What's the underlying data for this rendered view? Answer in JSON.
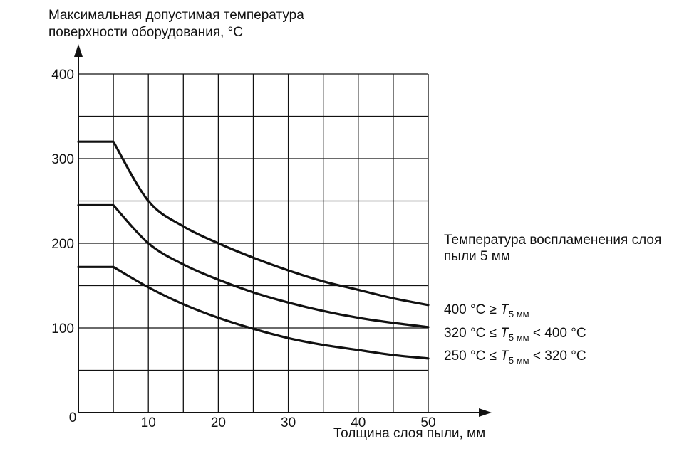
{
  "chart_data": {
    "type": "line",
    "ylabel_line1": "Максимальная допустимая температура",
    "ylabel_line2": "поверхности оборудования, °С",
    "xlabel": "Толщина слоя пыли, мм",
    "legend_title_line1": "Температура воспламенения слоя",
    "legend_title_line2": "пыли 5 мм",
    "xlim": [
      0,
      50
    ],
    "ylim": [
      0,
      400
    ],
    "grid": true,
    "x_ticks": [
      "10",
      "20",
      "30",
      "40",
      "50"
    ],
    "y_ticks": [
      "400",
      "300",
      "200",
      "100"
    ],
    "origin_label": "0",
    "series": [
      {
        "label_prefix": "400 °С ≥ ",
        "label_var": "T",
        "label_sub": "5 мм",
        "label_suffix": "",
        "x": [
          0,
          5,
          10,
          15,
          20,
          25,
          30,
          35,
          40,
          45,
          50
        ],
        "y": [
          320,
          320,
          250,
          220,
          200,
          183,
          168,
          155,
          145,
          135,
          127
        ]
      },
      {
        "label_prefix": "320 °С ≤ ",
        "label_var": "T",
        "label_sub": "5 мм",
        "label_suffix": " < 400 °С",
        "x": [
          0,
          5,
          10,
          15,
          20,
          25,
          30,
          35,
          40,
          45,
          50
        ],
        "y": [
          245,
          245,
          200,
          175,
          157,
          142,
          130,
          120,
          112,
          106,
          101
        ]
      },
      {
        "label_prefix": "250 °С ≤ ",
        "label_var": "T",
        "label_sub": "5 мм",
        "label_suffix": " < 320 °С",
        "x": [
          0,
          5,
          10,
          15,
          20,
          25,
          30,
          35,
          40,
          45,
          50
        ],
        "y": [
          172,
          172,
          148,
          128,
          112,
          99,
          88,
          80,
          74,
          68,
          64
        ]
      }
    ]
  }
}
